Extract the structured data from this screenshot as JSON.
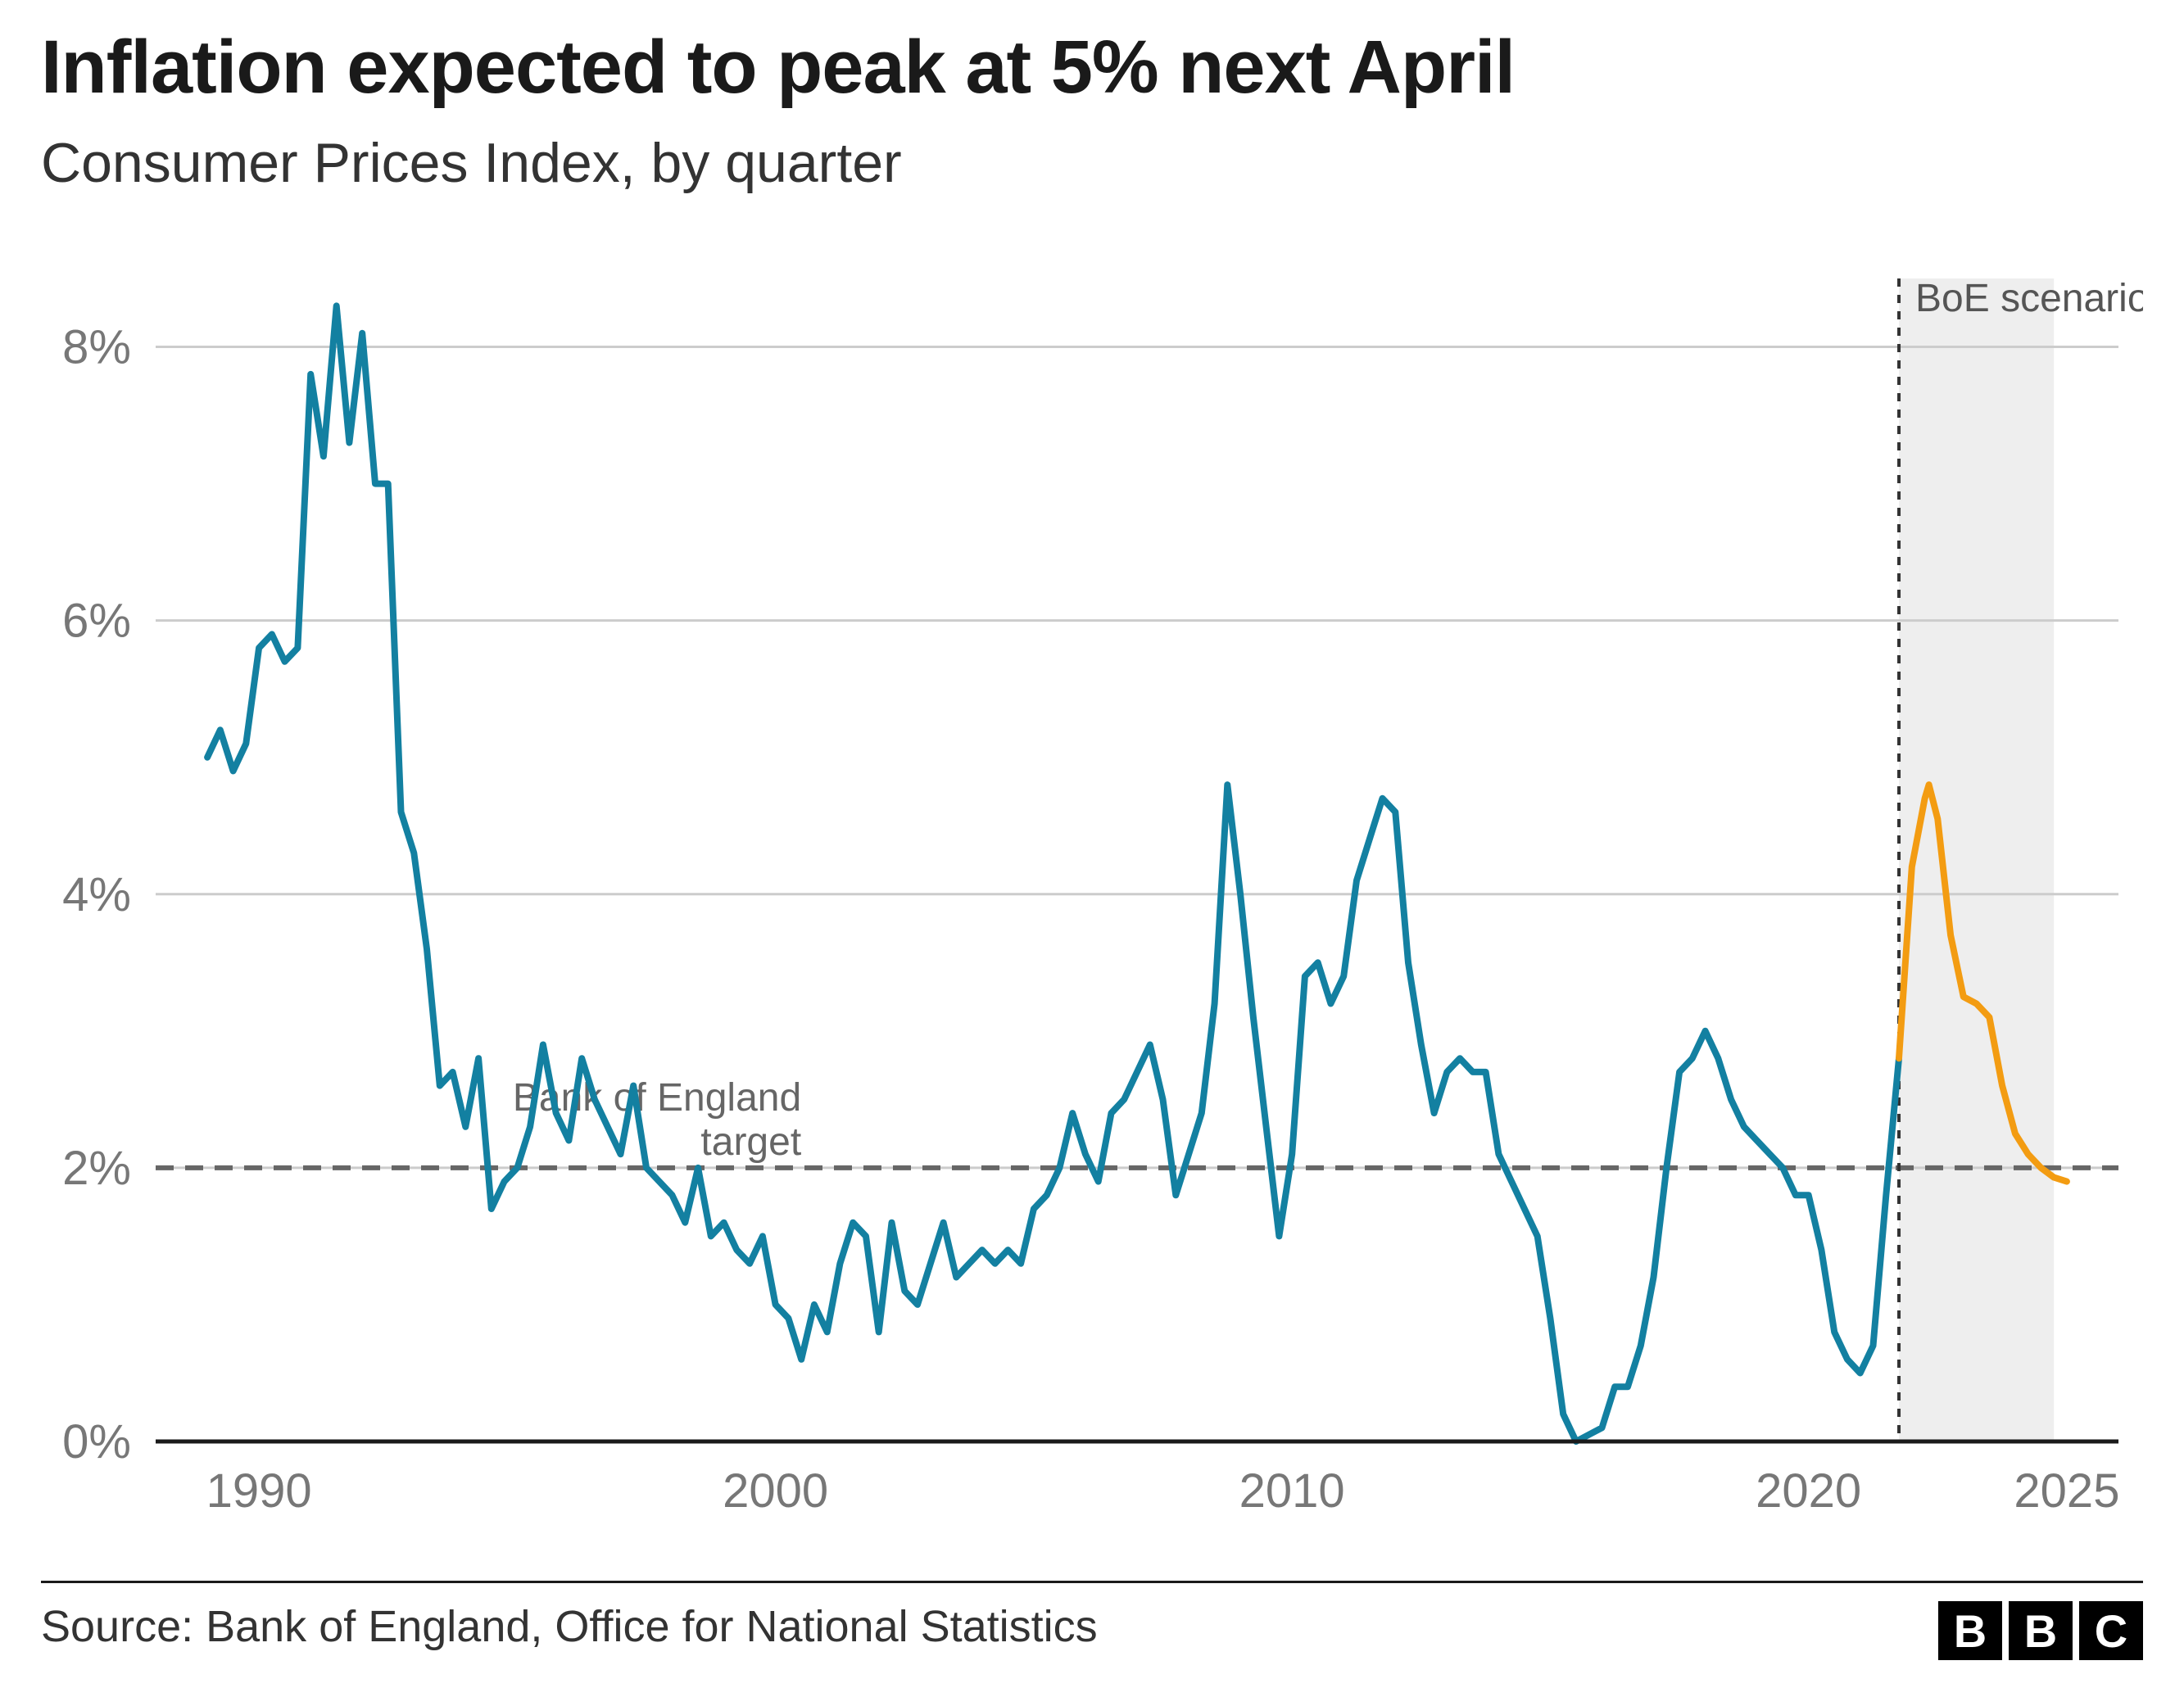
{
  "title": "Inflation expected to peak at 5% next April",
  "subtitle": "Consumer Prices Index, by quarter",
  "source": "Source: Bank of England, Office for National Statistics",
  "logo_letters": [
    "B",
    "B",
    "C"
  ],
  "chart": {
    "type": "line",
    "background_color": "#ffffff",
    "grid_color": "#cccccc",
    "axis_color": "#1a1a1a",
    "tick_label_color": "#777777",
    "tick_label_fontsize": 58,
    "annotation_color": "#666666",
    "annotation_fontsize": 48,
    "xlim": [
      1988,
      2026
    ],
    "ylim": [
      0,
      8.5
    ],
    "y_ticks": [
      0,
      2,
      4,
      6,
      8
    ],
    "y_tick_labels": [
      "0%",
      "2%",
      "4%",
      "6%",
      "8%"
    ],
    "x_ticks": [
      1990,
      2000,
      2010,
      2020,
      2025
    ],
    "x_tick_labels": [
      "1990",
      "2000",
      "2010",
      "2020",
      "2025"
    ],
    "target_line": {
      "value": 2,
      "label": "Bank of England\ntarget",
      "label_x": 2000.5,
      "stroke": "#666666",
      "stroke_width": 6,
      "dash": "22,14"
    },
    "forecast_divider": {
      "x": 2021.75,
      "stroke": "#333333",
      "stroke_width": 4,
      "dash": "10,10"
    },
    "forecast_band": {
      "x_start": 2021.75,
      "x_end": 2024.75,
      "fill": "#eeeeee",
      "label": "BoE scenario",
      "label_color": "#555555"
    },
    "series_historical": {
      "color": "#1380a1",
      "stroke_width": 8,
      "data": [
        [
          1989.0,
          5.0
        ],
        [
          1989.25,
          5.2
        ],
        [
          1989.5,
          4.9
        ],
        [
          1989.75,
          5.1
        ],
        [
          1990.0,
          5.8
        ],
        [
          1990.25,
          5.9
        ],
        [
          1990.5,
          5.7
        ],
        [
          1990.75,
          5.8
        ],
        [
          1991.0,
          7.8
        ],
        [
          1991.25,
          7.2
        ],
        [
          1991.5,
          8.3
        ],
        [
          1991.75,
          7.3
        ],
        [
          1992.0,
          8.1
        ],
        [
          1992.25,
          7.0
        ],
        [
          1992.5,
          7.0
        ],
        [
          1992.75,
          4.6
        ],
        [
          1993.0,
          4.3
        ],
        [
          1993.25,
          3.6
        ],
        [
          1993.5,
          2.6
        ],
        [
          1993.75,
          2.7
        ],
        [
          1994.0,
          2.3
        ],
        [
          1994.25,
          2.8
        ],
        [
          1994.5,
          1.7
        ],
        [
          1994.75,
          1.9
        ],
        [
          1995.0,
          2.0
        ],
        [
          1995.25,
          2.3
        ],
        [
          1995.5,
          2.9
        ],
        [
          1995.75,
          2.4
        ],
        [
          1996.0,
          2.2
        ],
        [
          1996.25,
          2.8
        ],
        [
          1996.5,
          2.5
        ],
        [
          1996.75,
          2.3
        ],
        [
          1997.0,
          2.1
        ],
        [
          1997.25,
          2.6
        ],
        [
          1997.5,
          2.0
        ],
        [
          1997.75,
          1.9
        ],
        [
          1998.0,
          1.8
        ],
        [
          1998.25,
          1.6
        ],
        [
          1998.5,
          2.0
        ],
        [
          1998.75,
          1.5
        ],
        [
          1999.0,
          1.6
        ],
        [
          1999.25,
          1.4
        ],
        [
          1999.5,
          1.3
        ],
        [
          1999.75,
          1.5
        ],
        [
          2000.0,
          1.0
        ],
        [
          2000.25,
          0.9
        ],
        [
          2000.5,
          0.6
        ],
        [
          2000.75,
          1.0
        ],
        [
          2001.0,
          0.8
        ],
        [
          2001.25,
          1.3
        ],
        [
          2001.5,
          1.6
        ],
        [
          2001.75,
          1.5
        ],
        [
          2002.0,
          0.8
        ],
        [
          2002.25,
          1.6
        ],
        [
          2002.5,
          1.1
        ],
        [
          2002.75,
          1.0
        ],
        [
          2003.0,
          1.3
        ],
        [
          2003.25,
          1.6
        ],
        [
          2003.5,
          1.2
        ],
        [
          2003.75,
          1.3
        ],
        [
          2004.0,
          1.4
        ],
        [
          2004.25,
          1.3
        ],
        [
          2004.5,
          1.4
        ],
        [
          2004.75,
          1.3
        ],
        [
          2005.0,
          1.7
        ],
        [
          2005.25,
          1.8
        ],
        [
          2005.5,
          2.0
        ],
        [
          2005.75,
          2.4
        ],
        [
          2006.0,
          2.1
        ],
        [
          2006.25,
          1.9
        ],
        [
          2006.5,
          2.4
        ],
        [
          2006.75,
          2.5
        ],
        [
          2007.0,
          2.7
        ],
        [
          2007.25,
          2.9
        ],
        [
          2007.5,
          2.5
        ],
        [
          2007.75,
          1.8
        ],
        [
          2008.0,
          2.1
        ],
        [
          2008.25,
          2.4
        ],
        [
          2008.5,
          3.2
        ],
        [
          2008.75,
          4.8
        ],
        [
          2009.0,
          4.0
        ],
        [
          2009.25,
          3.1
        ],
        [
          2009.5,
          2.3
        ],
        [
          2009.75,
          1.5
        ],
        [
          2010.0,
          2.1
        ],
        [
          2010.25,
          3.4
        ],
        [
          2010.5,
          3.5
        ],
        [
          2010.75,
          3.2
        ],
        [
          2011.0,
          3.4
        ],
        [
          2011.25,
          4.1
        ],
        [
          2011.5,
          4.4
        ],
        [
          2011.75,
          4.7
        ],
        [
          2012.0,
          4.6
        ],
        [
          2012.25,
          3.5
        ],
        [
          2012.5,
          2.9
        ],
        [
          2012.75,
          2.4
        ],
        [
          2013.0,
          2.7
        ],
        [
          2013.25,
          2.8
        ],
        [
          2013.5,
          2.7
        ],
        [
          2013.75,
          2.7
        ],
        [
          2014.0,
          2.1
        ],
        [
          2014.25,
          1.9
        ],
        [
          2014.5,
          1.7
        ],
        [
          2014.75,
          1.5
        ],
        [
          2015.0,
          0.9
        ],
        [
          2015.25,
          0.2
        ],
        [
          2015.5,
          0.0
        ],
        [
          2015.75,
          0.05
        ],
        [
          2016.0,
          0.1
        ],
        [
          2016.25,
          0.4
        ],
        [
          2016.5,
          0.4
        ],
        [
          2016.75,
          0.7
        ],
        [
          2017.0,
          1.2
        ],
        [
          2017.25,
          2.0
        ],
        [
          2017.5,
          2.7
        ],
        [
          2017.75,
          2.8
        ],
        [
          2018.0,
          3.0
        ],
        [
          2018.25,
          2.8
        ],
        [
          2018.5,
          2.5
        ],
        [
          2018.75,
          2.3
        ],
        [
          2019.0,
          2.2
        ],
        [
          2019.25,
          2.1
        ],
        [
          2019.5,
          2.0
        ],
        [
          2019.75,
          1.8
        ],
        [
          2020.0,
          1.8
        ],
        [
          2020.25,
          1.4
        ],
        [
          2020.5,
          0.8
        ],
        [
          2020.75,
          0.6
        ],
        [
          2021.0,
          0.5
        ],
        [
          2021.25,
          0.7
        ],
        [
          2021.5,
          1.8
        ],
        [
          2021.75,
          2.8
        ]
      ]
    },
    "series_forecast": {
      "color": "#f39c12",
      "stroke_width": 8,
      "data": [
        [
          2021.75,
          2.8
        ],
        [
          2022.0,
          4.2
        ],
        [
          2022.25,
          4.7
        ],
        [
          2022.33,
          4.8
        ],
        [
          2022.5,
          4.55
        ],
        [
          2022.75,
          3.7
        ],
        [
          2023.0,
          3.25
        ],
        [
          2023.25,
          3.2
        ],
        [
          2023.5,
          3.1
        ],
        [
          2023.75,
          2.6
        ],
        [
          2024.0,
          2.25
        ],
        [
          2024.25,
          2.1
        ],
        [
          2024.5,
          2.0
        ],
        [
          2024.75,
          1.93
        ],
        [
          2025.0,
          1.9
        ]
      ]
    }
  }
}
